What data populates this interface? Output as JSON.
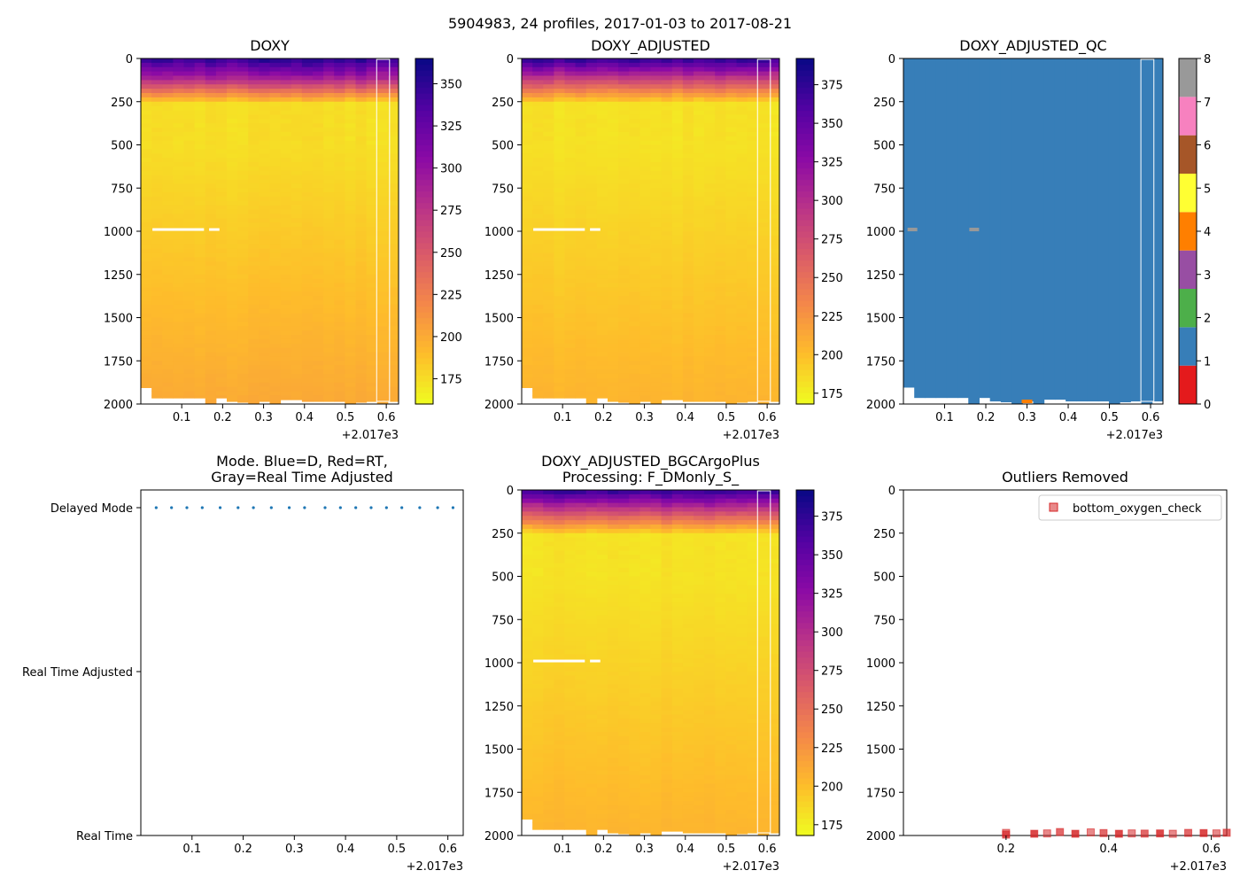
{
  "suptitle": "5904983, 24 profiles, 2017-01-03 to 2017-08-21",
  "x_offset_label": "+2.017e3",
  "chart_data": [
    {
      "type": "heatmap",
      "title": "DOXY",
      "colormap": "plasma_r",
      "x_range": [
        0.0,
        0.63
      ],
      "xticks": [
        "0.1",
        "0.2",
        "0.3",
        "0.4",
        "0.5",
        "0.6"
      ],
      "y_range": [
        0,
        2000
      ],
      "y_inverted": true,
      "yticks": [
        "0",
        "250",
        "500",
        "750",
        "1000",
        "1250",
        "1500",
        "1750",
        "2000"
      ],
      "vmin": 160,
      "vmax": 365,
      "colorbar_ticks": [
        "175",
        "200",
        "225",
        "250",
        "275",
        "300",
        "325",
        "350"
      ],
      "surface_value": 345,
      "deep_value": 200,
      "minimum_value": 168
    },
    {
      "type": "heatmap",
      "title": "DOXY_ADJUSTED",
      "colormap": "plasma_r",
      "x_range": [
        0.0,
        0.63
      ],
      "xticks": [
        "0.1",
        "0.2",
        "0.3",
        "0.4",
        "0.5",
        "0.6"
      ],
      "y_range": [
        0,
        2000
      ],
      "y_inverted": true,
      "yticks": [
        "0",
        "250",
        "500",
        "750",
        "1000",
        "1250",
        "1500",
        "1750",
        "2000"
      ],
      "vmin": 168,
      "vmax": 392,
      "colorbar_ticks": [
        "175",
        "200",
        "225",
        "250",
        "275",
        "300",
        "325",
        "350",
        "375"
      ],
      "surface_value": 370,
      "deep_value": 205,
      "minimum_value": 175
    },
    {
      "type": "heatmap",
      "title": "DOXY_ADJUSTED_QC",
      "colormap": "qc_categorical",
      "x_range": [
        0.0,
        0.63
      ],
      "xticks": [
        "0.1",
        "0.2",
        "0.3",
        "0.4",
        "0.5",
        "0.6"
      ],
      "y_range": [
        0,
        2000
      ],
      "y_inverted": true,
      "yticks": [
        "0",
        "250",
        "500",
        "750",
        "1000",
        "1250",
        "1500",
        "1750",
        "2000"
      ],
      "vmin": 0,
      "vmax": 8,
      "colorbar_ticks": [
        "0",
        "1",
        "2",
        "3",
        "4",
        "5",
        "6",
        "7",
        "8"
      ],
      "qc_colors": [
        "#e41a1c",
        "#377eb8",
        "#4daf4a",
        "#984ea3",
        "#ff7f00",
        "#ffff33",
        "#a65628",
        "#f781bf",
        "#999999"
      ],
      "dominant_flag": 1,
      "flag_8_points": [
        [
          0.01,
          990
        ],
        [
          0.16,
          990
        ]
      ],
      "flag_4_points": [
        [
          0.3,
          1995
        ]
      ]
    },
    {
      "type": "scatter",
      "title": "Mode. Blue=D, Red=RT,\nGray=Real Time Adjusted",
      "x_range": [
        0.0,
        0.63
      ],
      "xticks": [
        "0.1",
        "0.2",
        "0.3",
        "0.4",
        "0.5",
        "0.6"
      ],
      "ycategories": [
        "Real Time",
        "Real Time Adjusted",
        "Delayed Mode"
      ],
      "series": [
        {
          "name": "Delayed Mode",
          "color": "#1f77b4",
          "x": [
            0.03,
            0.06,
            0.09,
            0.12,
            0.155,
            0.19,
            0.22,
            0.255,
            0.29,
            0.32,
            0.36,
            0.39,
            0.42,
            0.45,
            0.48,
            0.51,
            0.545,
            0.58,
            0.61
          ],
          "y": [
            2,
            2,
            2,
            2,
            2,
            2,
            2,
            2,
            2,
            2,
            2,
            2,
            2,
            2,
            2,
            2,
            2,
            2,
            2
          ]
        }
      ]
    },
    {
      "type": "heatmap",
      "title": "DOXY_ADJUSTED_BGCArgoPlus\nProcessing: F_DMonly_S_",
      "colormap": "plasma_r",
      "x_range": [
        0.0,
        0.63
      ],
      "xticks": [
        "0.1",
        "0.2",
        "0.3",
        "0.4",
        "0.5",
        "0.6"
      ],
      "y_range": [
        0,
        2000
      ],
      "y_inverted": true,
      "yticks": [
        "0",
        "250",
        "500",
        "750",
        "1000",
        "1250",
        "1500",
        "1750",
        "2000"
      ],
      "vmin": 168,
      "vmax": 392,
      "colorbar_ticks": [
        "175",
        "200",
        "225",
        "250",
        "275",
        "300",
        "325",
        "350",
        "375"
      ],
      "surface_value": 370,
      "deep_value": 205,
      "minimum_value": 175
    },
    {
      "type": "scatter",
      "title": "Outliers Removed",
      "x_range": [
        0.0,
        0.63
      ],
      "xticks": [
        "0.2",
        "0.4",
        "0.6"
      ],
      "y_range": [
        0,
        2000
      ],
      "y_inverted": true,
      "yticks": [
        "0",
        "250",
        "500",
        "750",
        "1000",
        "1250",
        "1500",
        "1750",
        "2000"
      ],
      "legend": "top-right",
      "series": [
        {
          "name": "bottom_oxygen_check",
          "color": "#d62728",
          "marker": "square",
          "x": [
            0.2,
            0.2,
            0.255,
            0.28,
            0.305,
            0.335,
            0.365,
            0.39,
            0.42,
            0.445,
            0.47,
            0.5,
            0.525,
            0.555,
            0.585,
            0.61,
            0.63
          ],
          "y": [
            1985,
            1995,
            1990,
            1988,
            1980,
            1990,
            1982,
            1986,
            1990,
            1988,
            1989,
            1988,
            1990,
            1985,
            1986,
            1988,
            1984
          ]
        }
      ]
    }
  ]
}
